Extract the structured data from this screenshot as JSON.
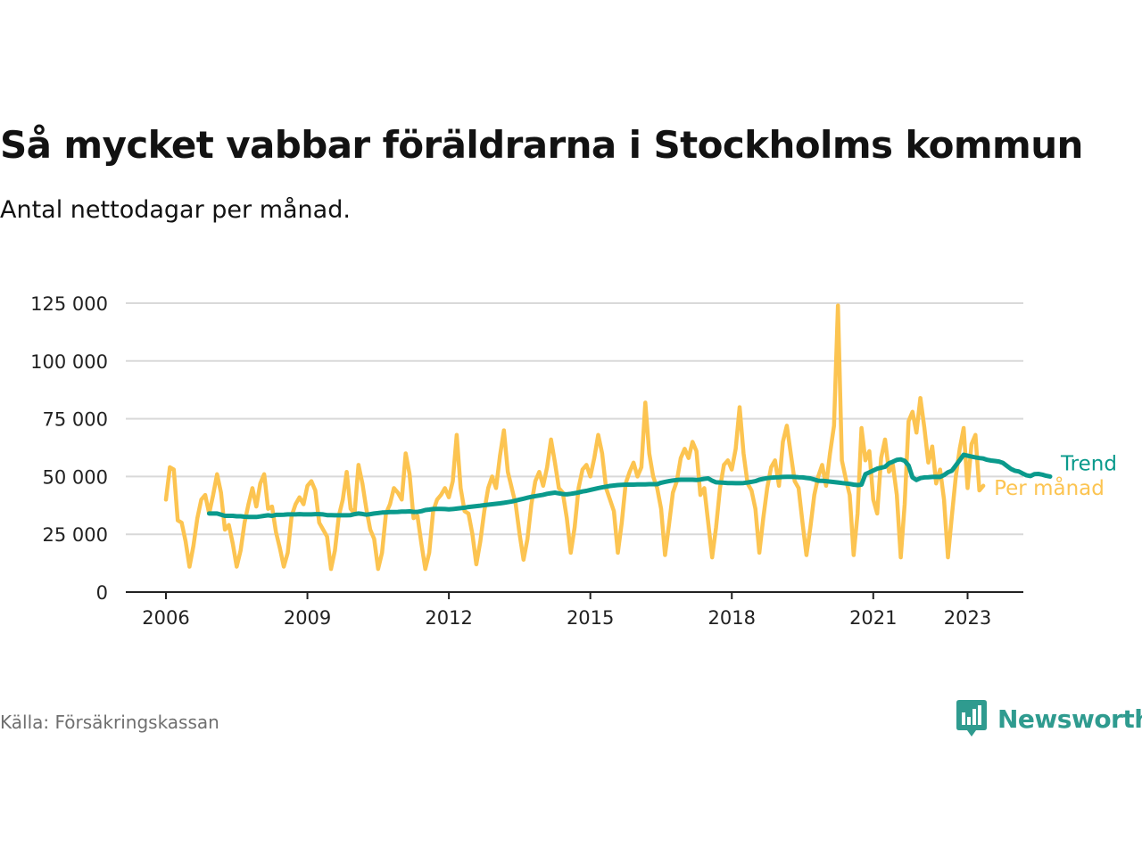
{
  "title": "Så mycket vabbar föräldrarna i Stockholms kommun",
  "subtitle": "Antal nettodagar per månad.",
  "source": "Källa: Försäkringskassan",
  "brand": "Newsworthy",
  "colors": {
    "monthly": "#fcc451",
    "trend": "#0a9a8c",
    "grid": "#d9d9d9",
    "axis": "#222222",
    "brand": "#2f9b8f"
  },
  "chart_data": {
    "type": "line",
    "title": "Så mycket vabbar föräldrarna i Stockholms kommun",
    "subtitle": "Antal nettodagar per månad.",
    "xlabel": "",
    "ylabel": "",
    "xlim": [
      2006,
      2023.5
    ],
    "ylim": [
      0,
      125000
    ],
    "x_ticks": [
      2006,
      2009,
      2012,
      2015,
      2018,
      2021,
      2023
    ],
    "y_ticks": [
      0,
      25000,
      50000,
      75000,
      100000,
      125000
    ],
    "y_tick_labels": [
      "0",
      "25 000",
      "50 000",
      "75 000",
      "100 000",
      "125 000"
    ],
    "grid": true,
    "legend": "end-of-line labels",
    "series": [
      {
        "name": "Per månad",
        "color": "#fcc451",
        "start": "2006-01",
        "values": [
          40000,
          54000,
          53000,
          31000,
          30000,
          22000,
          11000,
          20000,
          32000,
          40000,
          42000,
          34000,
          42000,
          51000,
          43000,
          27000,
          29000,
          21000,
          11000,
          18000,
          30000,
          38000,
          45000,
          37000,
          47000,
          51000,
          36000,
          37000,
          26000,
          19000,
          11000,
          17000,
          33000,
          38000,
          41000,
          38000,
          46000,
          48000,
          44000,
          30000,
          27000,
          24000,
          10000,
          18000,
          33000,
          40000,
          52000,
          36000,
          34000,
          55000,
          47000,
          36000,
          27000,
          23000,
          10000,
          17000,
          34000,
          38000,
          45000,
          43000,
          40000,
          60000,
          51000,
          32000,
          33000,
          21000,
          10000,
          17000,
          35000,
          40000,
          42000,
          45000,
          41000,
          48000,
          68000,
          45000,
          35000,
          34000,
          25000,
          12000,
          22000,
          35000,
          45000,
          50000,
          45000,
          59000,
          70000,
          52000,
          45000,
          38000,
          25000,
          14000,
          23000,
          38000,
          48000,
          52000,
          46000,
          54000,
          66000,
          56000,
          45000,
          43000,
          32000,
          17000,
          28000,
          45000,
          53000,
          55000,
          50000,
          58000,
          68000,
          60000,
          45000,
          40000,
          35000,
          17000,
          30000,
          47000,
          52000,
          56000,
          50000,
          54000,
          82000,
          60000,
          50000,
          45000,
          36000,
          16000,
          29000,
          43000,
          48000,
          58000,
          62000,
          58000,
          65000,
          61000,
          42000,
          45000,
          30000,
          15000,
          28000,
          45000,
          55000,
          57000,
          53000,
          62000,
          80000,
          60000,
          47000,
          44000,
          36000,
          17000,
          32000,
          45000,
          54000,
          57000,
          46000,
          65000,
          72000,
          60000,
          48000,
          45000,
          30000,
          16000,
          28000,
          42000,
          50000,
          55000,
          46000,
          60000,
          72000,
          124000,
          57000,
          49000,
          42000,
          16000,
          34000,
          71000,
          57000,
          61000,
          40000,
          34000,
          58000,
          66000,
          52000,
          55000,
          42000,
          15000,
          38000,
          74000,
          78000,
          69000,
          84000,
          71000,
          56000,
          63000,
          47000,
          53000,
          40000,
          15000,
          33000,
          50000,
          62000,
          71000,
          45000,
          64000,
          68000,
          44000,
          46000
        ]
      },
      {
        "name": "Trend",
        "color": "#0a9a8c",
        "start": "2006-12",
        "values": [
          34000,
          34000,
          34000,
          33500,
          33000,
          33000,
          33000,
          32800,
          32800,
          32600,
          32500,
          32500,
          32500,
          32700,
          33000,
          33200,
          33000,
          33400,
          33400,
          33500,
          33600,
          33600,
          33600,
          33700,
          33600,
          33600,
          33600,
          33700,
          33700,
          33600,
          33300,
          33300,
          33200,
          33200,
          33200,
          33200,
          33300,
          33700,
          34000,
          33800,
          33500,
          33700,
          34000,
          34200,
          34400,
          34500,
          34600,
          34600,
          34700,
          34800,
          34800,
          34900,
          34700,
          34700,
          35000,
          35500,
          35700,
          35900,
          36000,
          36000,
          35900,
          35800,
          35900,
          36100,
          36300,
          36500,
          36800,
          37000,
          37200,
          37400,
          37600,
          37800,
          38000,
          38200,
          38400,
          38600,
          38900,
          39200,
          39600,
          40000,
          40400,
          40800,
          41200,
          41500,
          41800,
          42100,
          42500,
          42800,
          43000,
          42700,
          42400,
          42300,
          42500,
          42800,
          43100,
          43500,
          43800,
          44200,
          44600,
          45000,
          45300,
          45600,
          45900,
          46100,
          46300,
          46400,
          46500,
          46500,
          46500,
          46600,
          46600,
          46600,
          46700,
          46700,
          46700,
          47300,
          47700,
          48000,
          48300,
          48500,
          48600,
          48600,
          48600,
          48600,
          48500,
          48700,
          49000,
          49200,
          48200,
          47500,
          47400,
          47300,
          47200,
          47200,
          47100,
          47100,
          47200,
          47400,
          47700,
          48000,
          48600,
          49000,
          49300,
          49500,
          49600,
          49700,
          49800,
          49900,
          49900,
          49800,
          49700,
          49600,
          49400,
          49200,
          48700,
          48200,
          48100,
          48000,
          47800,
          47600,
          47400,
          47200,
          47000,
          46800,
          46500,
          46300,
          46500,
          51000,
          51800,
          52600,
          53400,
          53800,
          54200,
          55700,
          56400,
          57200,
          57400,
          56800,
          54700,
          49600,
          48500,
          49300,
          49600,
          49700,
          49800,
          49900,
          49800,
          50600,
          51800,
          52500,
          54800,
          57100,
          59400,
          59000,
          58600,
          58300,
          58000,
          57800,
          57200,
          56900,
          56700,
          56500,
          55900,
          54600,
          53300,
          52500,
          52200,
          51300,
          50500,
          50200,
          51000,
          51100,
          50800,
          50300,
          50000
        ]
      }
    ]
  }
}
